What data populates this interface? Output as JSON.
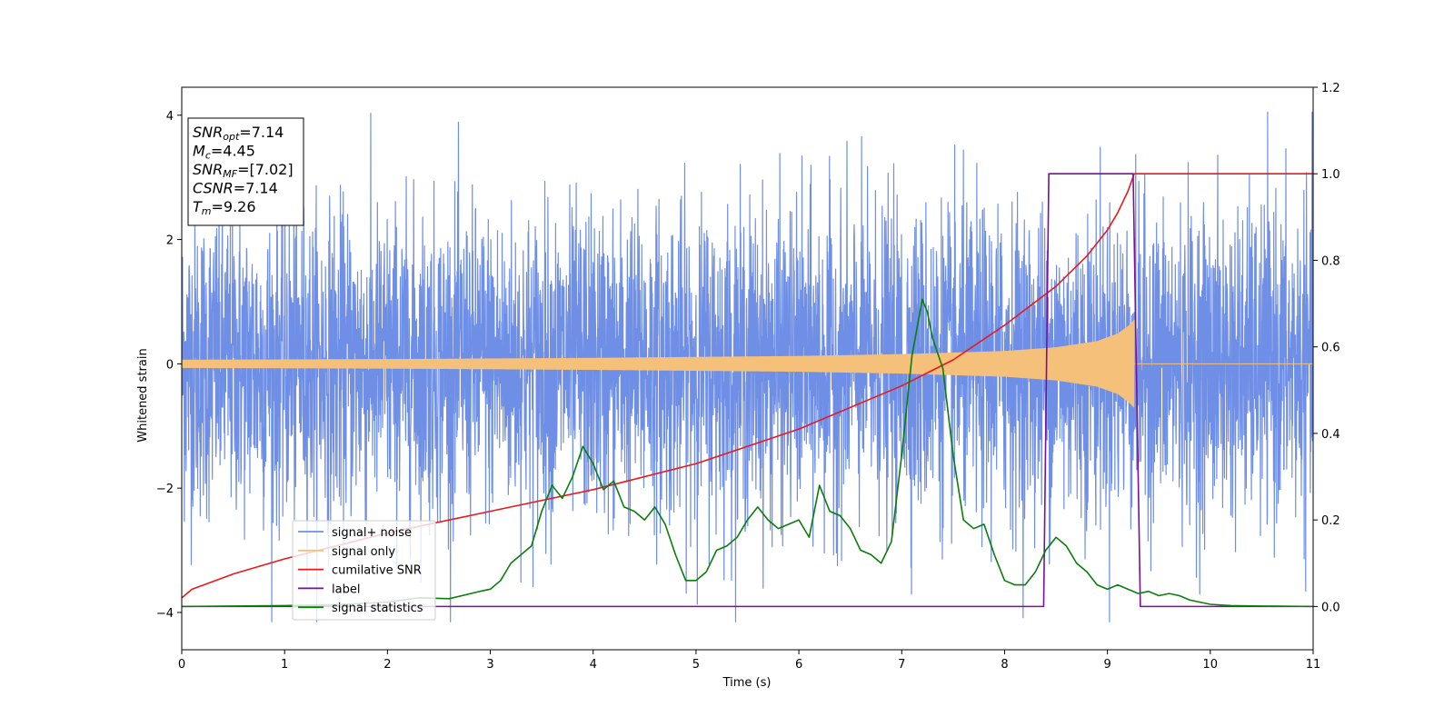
{
  "chart_data": {
    "type": "line",
    "title": "",
    "xlabel": "Time (s)",
    "ylabel": "Whitened strain",
    "xlim": [
      0,
      11
    ],
    "ylim": [
      -4.6,
      4.45
    ],
    "y2lim": [
      -0.1,
      1.2
    ],
    "x_ticks": [
      "0",
      "1",
      "2",
      "3",
      "4",
      "5",
      "6",
      "7",
      "8",
      "9",
      "10",
      "11"
    ],
    "y_ticks": [
      "4",
      "2",
      "0",
      "−2",
      "−4"
    ],
    "y2_ticks": [
      "1.2",
      "1.0",
      "0.8",
      "0.6",
      "0.4",
      "0.2",
      "0.0"
    ],
    "grid": false,
    "legend_position": "lower-left",
    "stats": [
      {
        "sym": "SNR",
        "sub": "opt",
        "val": "=7.14"
      },
      {
        "sym": "M",
        "sub": "c",
        "val": "=4.45"
      },
      {
        "sym": "SNR",
        "sub": "MF",
        "val": "=[7.02]"
      },
      {
        "sym": "CSNR",
        "sub": "",
        "val": "=7.14"
      },
      {
        "sym": "T",
        "sub": "m",
        "val": "=9.26"
      }
    ],
    "series": [
      {
        "name": "signal+ noise",
        "axis": "left",
        "color": "#6f8fe6",
        "style": "noise",
        "x_range": [
          0,
          11
        ],
        "amplitude": 3.2,
        "min": -4.15,
        "max": 4.05
      },
      {
        "name": "signal only",
        "axis": "left",
        "color": "#f5c07a",
        "style": "chirp",
        "x_range": [
          0,
          9.26
        ],
        "envelope_x": [
          0,
          2,
          4,
          6,
          7,
          8,
          8.5,
          8.9,
          9.1,
          9.2,
          9.26
        ],
        "envelope_y": [
          0.06,
          0.07,
          0.09,
          0.12,
          0.15,
          0.2,
          0.26,
          0.36,
          0.48,
          0.6,
          0.7
        ]
      },
      {
        "name": "cumilative SNR",
        "axis": "right",
        "color": "#e8191c",
        "x": [
          0,
          0.1,
          0.5,
          1,
          2,
          3,
          4,
          5,
          6,
          7,
          7.5,
          8,
          8.5,
          8.8,
          9.0,
          9.1,
          9.2,
          9.26,
          9.3,
          11
        ],
        "y": [
          0.02,
          0.04,
          0.075,
          0.11,
          0.17,
          0.22,
          0.27,
          0.33,
          0.41,
          0.51,
          0.57,
          0.65,
          0.74,
          0.81,
          0.87,
          0.91,
          0.96,
          1.0,
          1.0,
          1.0
        ]
      },
      {
        "name": "label",
        "axis": "right",
        "color": "#7a0f9a",
        "x": [
          0,
          8.38,
          8.43,
          9.25,
          9.32,
          11
        ],
        "y": [
          0,
          0,
          1,
          1,
          0,
          0
        ]
      },
      {
        "name": "signal statistics",
        "axis": "right",
        "color": "#0a7d0a",
        "x": [
          0,
          0.5,
          1,
          1.5,
          2,
          2.3,
          2.6,
          2.9,
          3.0,
          3.1,
          3.2,
          3.3,
          3.4,
          3.5,
          3.6,
          3.7,
          3.8,
          3.9,
          4.0,
          4.1,
          4.2,
          4.3,
          4.4,
          4.5,
          4.6,
          4.7,
          4.8,
          4.9,
          5.0,
          5.1,
          5.2,
          5.3,
          5.4,
          5.5,
          5.6,
          5.7,
          5.8,
          5.9,
          6.0,
          6.1,
          6.2,
          6.3,
          6.4,
          6.5,
          6.6,
          6.7,
          6.8,
          6.9,
          7.0,
          7.1,
          7.2,
          7.25,
          7.3,
          7.4,
          7.5,
          7.6,
          7.7,
          7.8,
          7.9,
          8.0,
          8.1,
          8.2,
          8.3,
          8.4,
          8.5,
          8.6,
          8.7,
          8.8,
          8.9,
          9.0,
          9.1,
          9.2,
          9.3,
          9.4,
          9.5,
          9.6,
          9.7,
          9.8,
          9.9,
          10.0,
          10.2,
          10.5,
          11
        ],
        "y": [
          0,
          0.001,
          0.002,
          0.004,
          0.01,
          0.02,
          0.018,
          0.035,
          0.04,
          0.06,
          0.1,
          0.12,
          0.14,
          0.22,
          0.28,
          0.25,
          0.3,
          0.37,
          0.33,
          0.27,
          0.29,
          0.23,
          0.22,
          0.2,
          0.23,
          0.19,
          0.12,
          0.06,
          0.06,
          0.08,
          0.13,
          0.14,
          0.16,
          0.2,
          0.23,
          0.2,
          0.18,
          0.19,
          0.2,
          0.16,
          0.28,
          0.22,
          0.21,
          0.18,
          0.13,
          0.12,
          0.1,
          0.15,
          0.35,
          0.58,
          0.71,
          0.68,
          0.62,
          0.55,
          0.35,
          0.2,
          0.18,
          0.19,
          0.12,
          0.06,
          0.05,
          0.05,
          0.08,
          0.13,
          0.16,
          0.14,
          0.1,
          0.08,
          0.05,
          0.04,
          0.05,
          0.04,
          0.03,
          0.035,
          0.025,
          0.03,
          0.025,
          0.015,
          0.01,
          0.005,
          0.002,
          0.001,
          0
        ]
      }
    ]
  }
}
